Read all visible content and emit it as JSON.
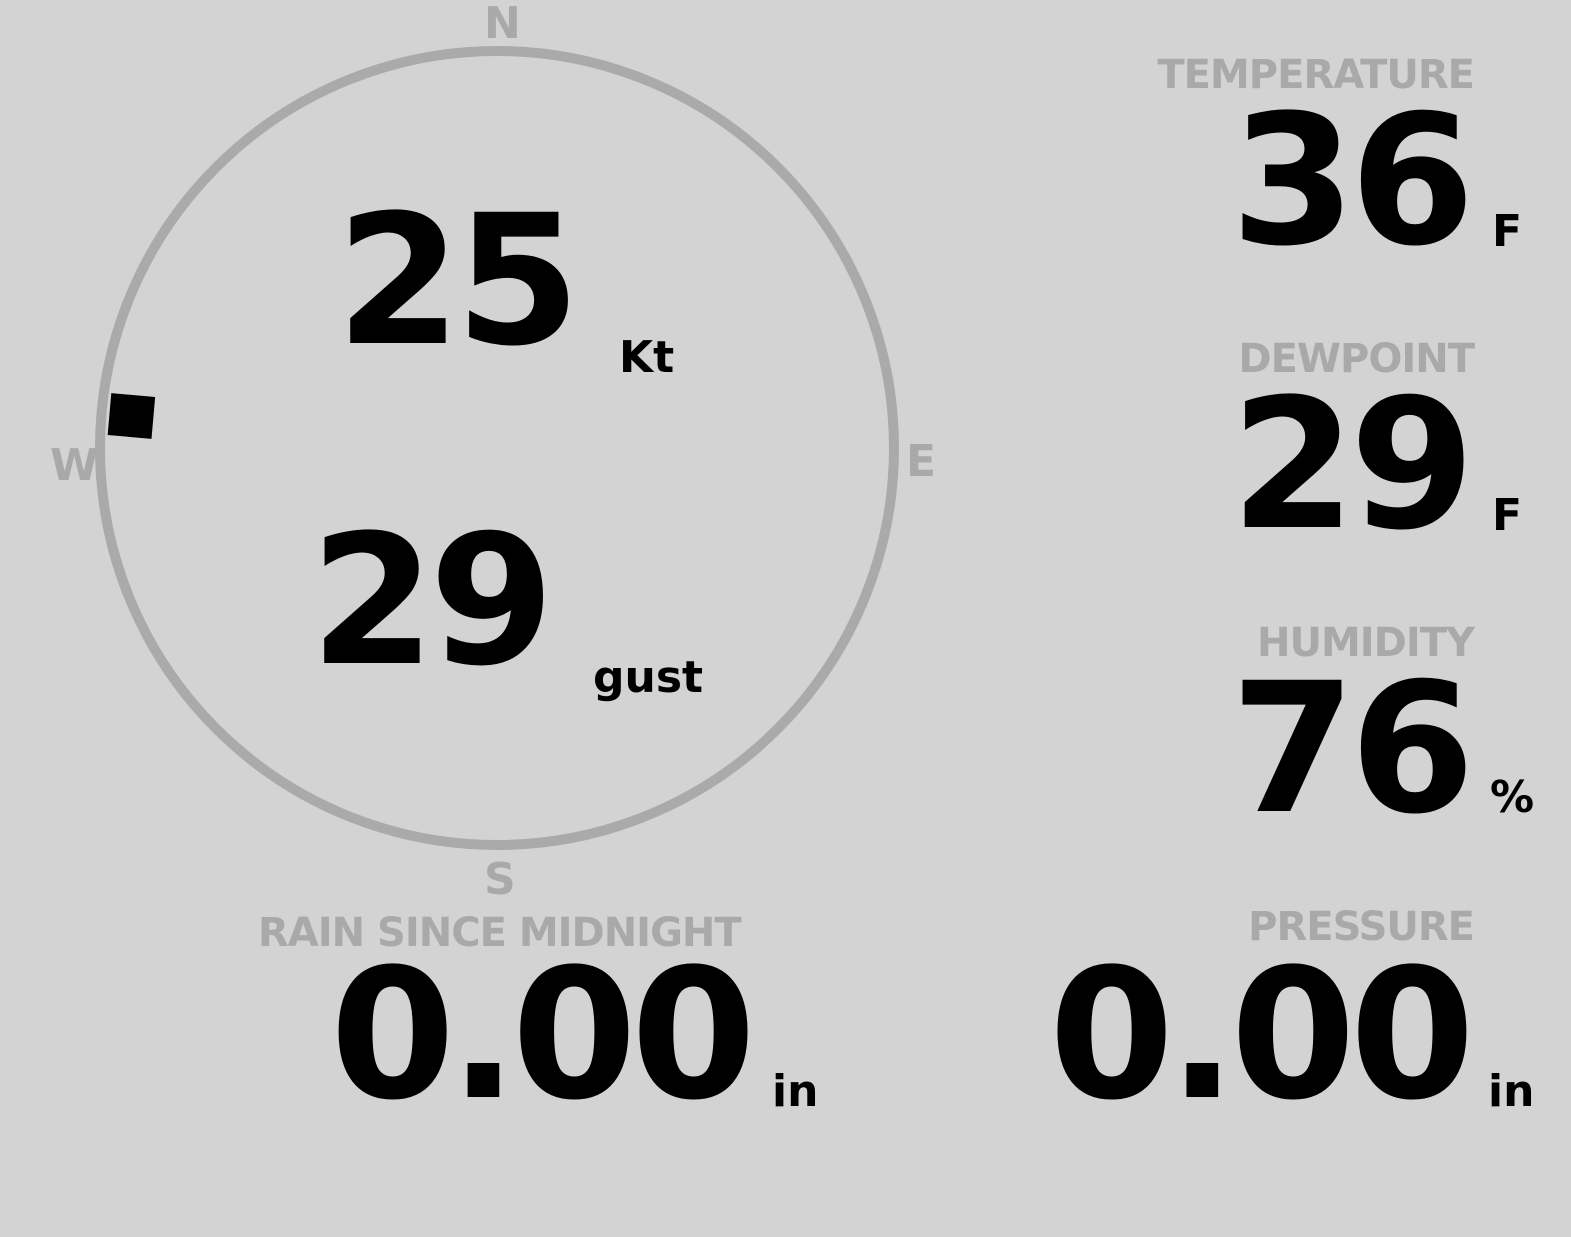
{
  "compass": {
    "north": "N",
    "south": "S",
    "east": "E",
    "west": "W",
    "wind_direction_deg": 275,
    "ring_color": "#aaaaaa",
    "marker_color": "#000000"
  },
  "wind": {
    "speed": "25",
    "speed_unit": "Kt",
    "gust": "29",
    "gust_unit": "gust"
  },
  "temperature": {
    "label": "TEMPERATURE",
    "value": "36",
    "unit": "F"
  },
  "dewpoint": {
    "label": "DEWPOINT",
    "value": "29",
    "unit": "F"
  },
  "humidity": {
    "label": "HUMIDITY",
    "value": "76",
    "unit": "%"
  },
  "rain": {
    "label": "RAIN SINCE MIDNIGHT",
    "value": "0.00",
    "unit": "in"
  },
  "pressure": {
    "label": "PRESSURE",
    "value": "0.00",
    "unit": "in"
  },
  "colors": {
    "background": "#d3d3d3",
    "label": "#a9a9a9",
    "value": "#000000"
  }
}
